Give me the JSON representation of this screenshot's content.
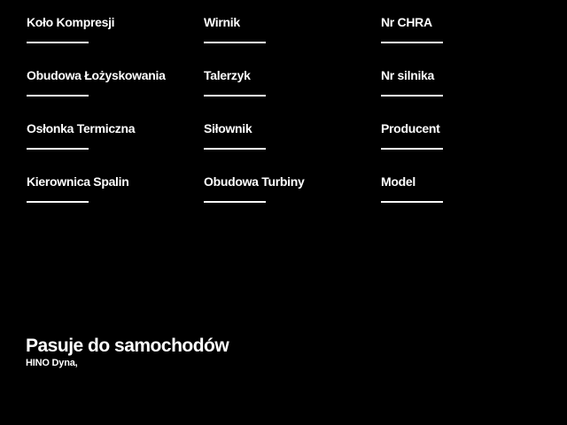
{
  "page": {
    "background_color": "#000000",
    "text_color": "#ffffff"
  },
  "spec_form": {
    "columns": [
      {
        "fields": [
          {
            "label": "Koło Kompresji",
            "value": ""
          },
          {
            "label": "Obudowa Łożyskowania",
            "value": ""
          },
          {
            "label": "Osłonka Termiczna",
            "value": ""
          },
          {
            "label": "Kierownica Spalin",
            "value": ""
          }
        ]
      },
      {
        "fields": [
          {
            "label": "Wirnik",
            "value": ""
          },
          {
            "label": "Talerzyk",
            "value": ""
          },
          {
            "label": "Siłownik",
            "value": ""
          },
          {
            "label": "Obudowa Turbiny",
            "value": ""
          }
        ]
      },
      {
        "fields": [
          {
            "label": "Nr CHRA",
            "value": ""
          },
          {
            "label": "Nr silnika",
            "value": ""
          },
          {
            "label": "Producent",
            "value": ""
          },
          {
            "label": "Model",
            "value": ""
          }
        ]
      }
    ]
  },
  "compatibility": {
    "heading": "Pasuje do samochodów",
    "vehicles": "HINO Dyna,"
  }
}
